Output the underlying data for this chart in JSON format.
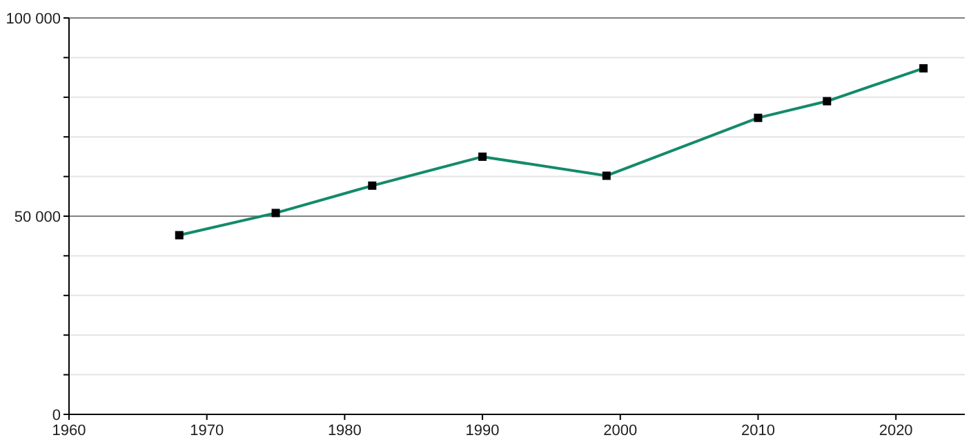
{
  "chart_data": {
    "type": "line",
    "x": [
      1968,
      1975,
      1982,
      1990,
      1999,
      2010,
      2015,
      2022
    ],
    "series": [
      {
        "color": "#138a6b",
        "values": [
          45200,
          50800,
          57700,
          65000,
          60200,
          74800,
          79000,
          87300
        ]
      }
    ],
    "xlim": [
      1960,
      2025
    ],
    "xticks": [
      1960,
      1970,
      1980,
      1990,
      2000,
      2010,
      2020
    ],
    "ylim": [
      0,
      100000
    ],
    "yticks": [
      0,
      {
        "value": 10000,
        "label": null
      },
      {
        "value": 20000,
        "label": null
      },
      {
        "value": 30000,
        "label": null
      },
      {
        "value": 40000,
        "label": null
      },
      {
        "value": 50000,
        "label": "50 000"
      },
      {
        "value": 60000,
        "label": null
      },
      {
        "value": 70000,
        "label": null
      },
      {
        "value": 80000,
        "label": null
      },
      {
        "value": 90000,
        "label": null
      },
      {
        "value": 100000,
        "label": "100 000"
      }
    ],
    "ref_lines": [
      {
        "axis": "y",
        "value": 50000,
        "color": "#808080"
      },
      {
        "axis": "y",
        "value": 100000,
        "color": "#808080"
      }
    ],
    "grid": "y",
    "marker": "square",
    "line_style": "solid"
  }
}
